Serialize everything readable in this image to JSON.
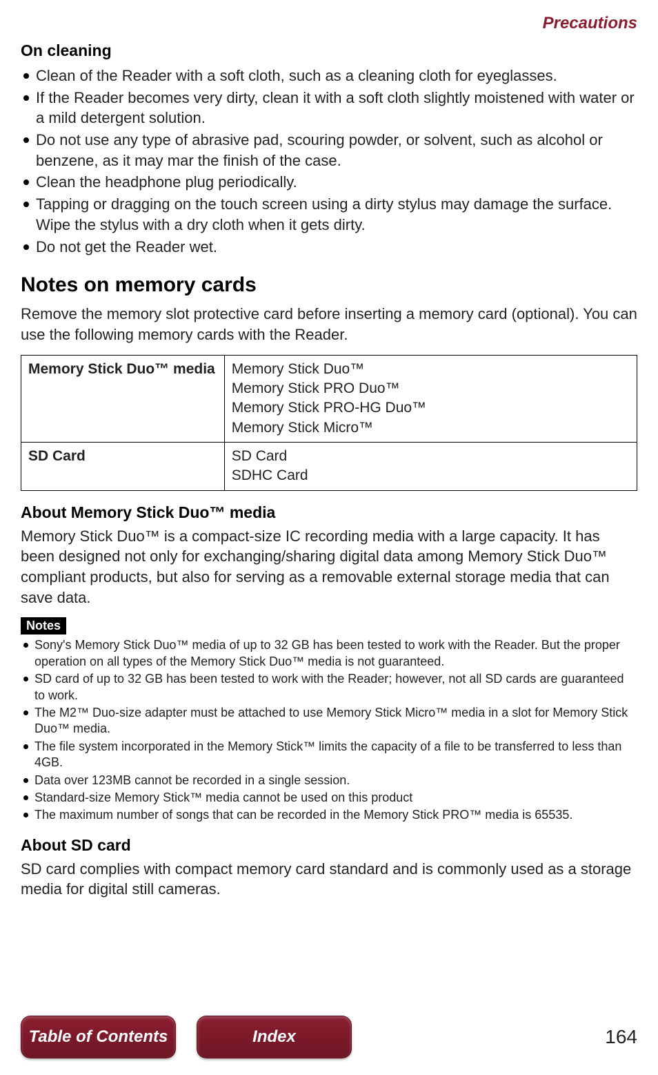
{
  "header": {
    "title": "Precautions",
    "color": "#8a1d2f"
  },
  "section_oncleaning": {
    "heading": "On cleaning",
    "items": [
      "Clean of the Reader with a soft cloth, such as a cleaning cloth for eyeglasses.",
      "If the Reader becomes very dirty, clean it with a soft cloth slightly moistened with water or a mild detergent solution.",
      "Do not use any type of abrasive pad, scouring powder, or solvent, such as alcohol or benzene, as it may mar the finish of the case.",
      "Clean the headphone plug periodically.",
      "Tapping or dragging on the touch screen using a dirty stylus may damage the surface. Wipe the stylus with a dry cloth when it gets dirty.",
      "Do not get the Reader wet."
    ]
  },
  "section_memory": {
    "heading": "Notes on memory cards",
    "intro": "Remove the memory slot protective card before inserting a memory card (optional). You can use the following memory cards with the Reader.",
    "table": {
      "rows": [
        {
          "left": "Memory Stick Duo™ media",
          "right": "Memory Stick Duo™\nMemory Stick PRO Duo™\nMemory Stick PRO-HG Duo™\nMemory Stick Micro™"
        },
        {
          "left": "SD Card",
          "right": "SD Card\nSDHC Card"
        }
      ]
    }
  },
  "section_about_ms": {
    "heading": "About Memory Stick Duo™ media",
    "body": "Memory Stick Duo™ is a compact-size IC recording media with a large capacity. It has been designed not only for exchanging/sharing digital data among Memory Stick Duo™ compliant products, but also for serving as a removable external storage media that can save data."
  },
  "notes": {
    "label": "Notes",
    "items": [
      "Sony's Memory Stick Duo™ media of up to 32 GB has been tested to work with the Reader. But the proper operation on all types of the Memory Stick Duo™ media is not guaranteed.",
      "SD card of up to 32 GB has been tested to work with the Reader; however, not all SD cards are guaranteed to work.",
      "The M2™ Duo-size adapter must be attached to use Memory Stick Micro™ media in a slot for Memory Stick Duo™ media.",
      "The file system incorporated in the Memory Stick™ limits the capacity of a file to be transferred to less than 4GB.",
      "Data over 123MB cannot be recorded in a single session.",
      "Standard-size Memory Stick™ media cannot be used on this product",
      "The maximum number of songs that can be recorded in the Memory Stick PRO™ media is 65535."
    ]
  },
  "section_about_sd": {
    "heading": "About SD card",
    "body": "SD card complies with compact memory card standard and is commonly used as a storage media for digital still cameras."
  },
  "footer": {
    "buttons": {
      "toc": {
        "label": "Table of Contents",
        "bg": "#8a1d2f"
      },
      "index": {
        "label": "Index",
        "bg": "#8a1d2f"
      }
    },
    "page_number": "164"
  }
}
